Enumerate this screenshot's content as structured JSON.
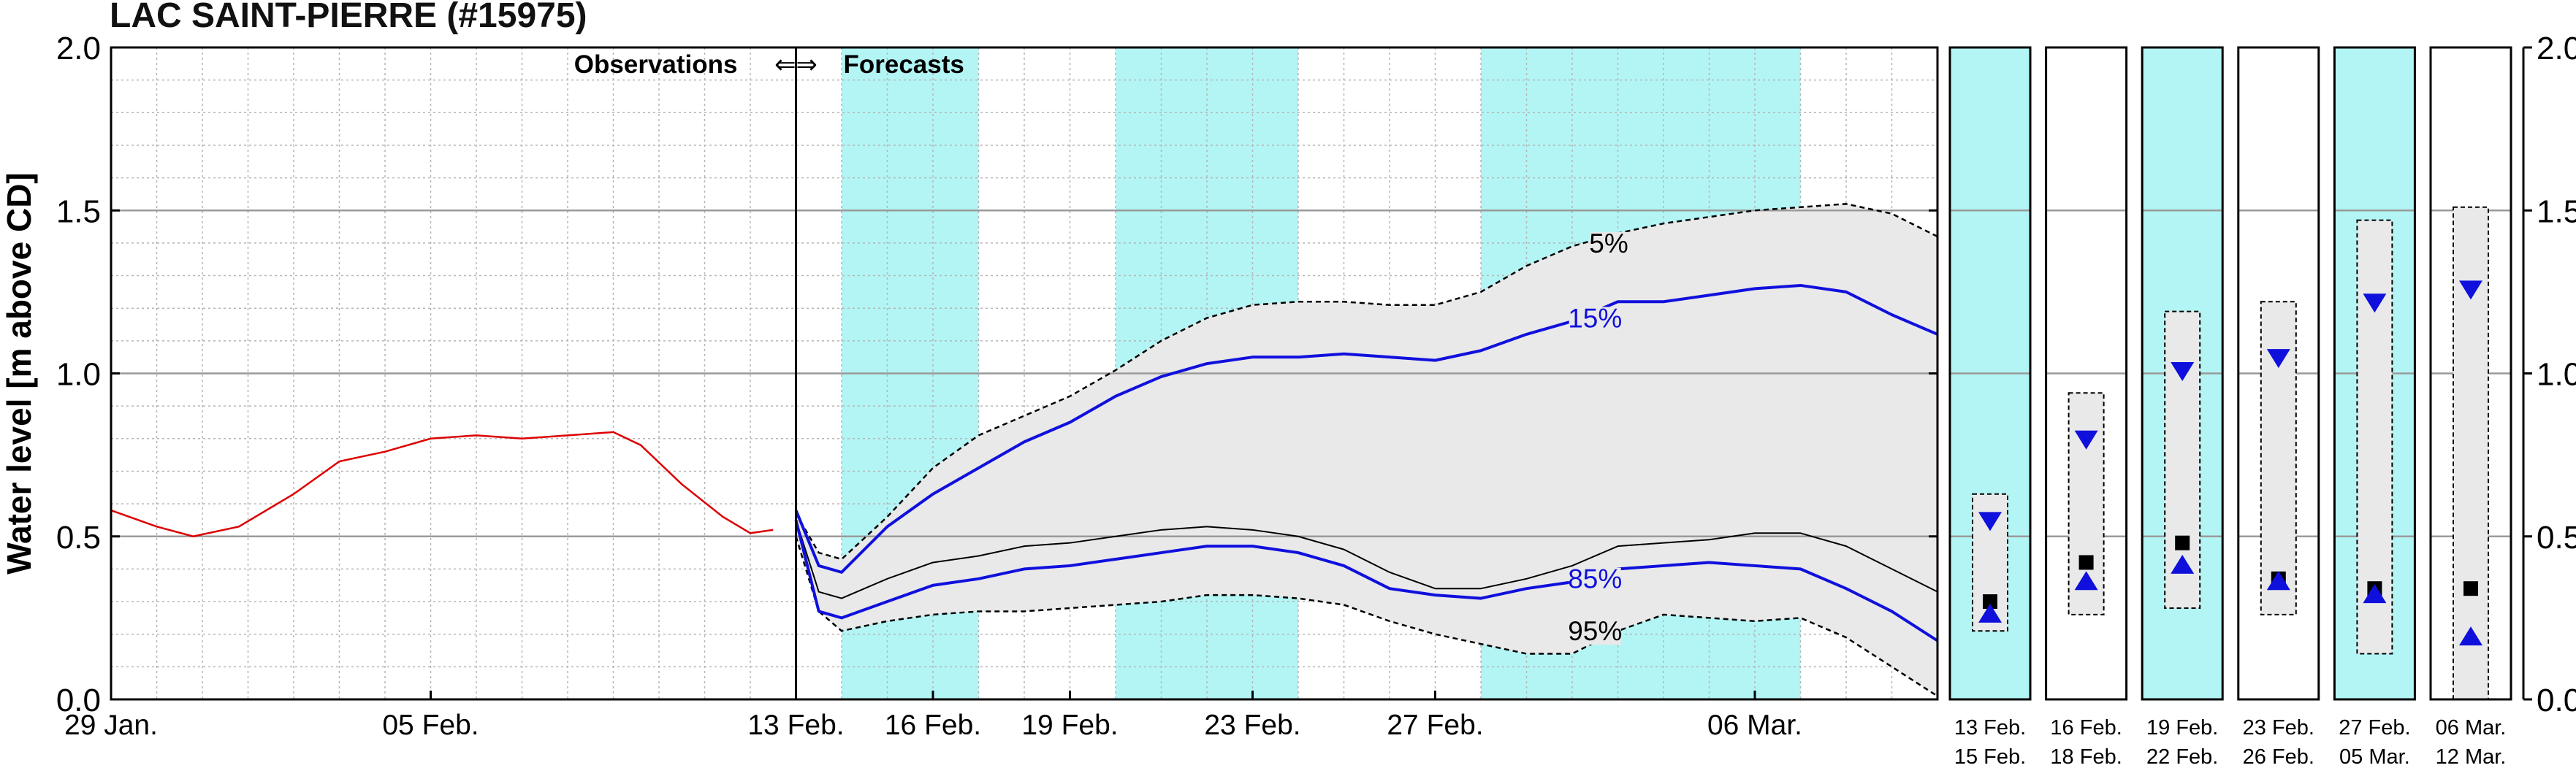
{
  "chart_data": {
    "type": "line",
    "title": "LAC SAINT-PIERRE (#15975)",
    "ylabel": "Water level [m above CD]",
    "xlabel": "",
    "ylim": [
      0.0,
      2.0
    ],
    "grid": true,
    "yticks": [
      "0.0",
      "0.5",
      "1.0",
      "1.5",
      "2.0"
    ],
    "x_start_day": -15,
    "x_end_day": 25,
    "xticks": [
      {
        "day": -15,
        "label": "29 Jan."
      },
      {
        "day": -8,
        "label": "05 Feb."
      },
      {
        "day": 0,
        "label": "13 Feb."
      },
      {
        "day": 3,
        "label": "16 Feb."
      },
      {
        "day": 6,
        "label": "19 Feb."
      },
      {
        "day": 10,
        "label": "23 Feb."
      },
      {
        "day": 14,
        "label": "27 Feb."
      },
      {
        "day": 21,
        "label": "06 Mar."
      }
    ],
    "divider": {
      "day": 0,
      "left_label": "Observations",
      "arrows": "⇐⇒",
      "right_label": "Forecasts"
    },
    "shaded_periods": [
      [
        1,
        4
      ],
      [
        7,
        11
      ],
      [
        15,
        22
      ]
    ],
    "observations": {
      "name": "",
      "color": "#dd0000",
      "points": [
        [
          -15,
          0.58
        ],
        [
          -14,
          0.53
        ],
        [
          -13.2,
          0.5
        ],
        [
          -12.2,
          0.53
        ],
        [
          -11,
          0.63
        ],
        [
          -10,
          0.73
        ],
        [
          -9,
          0.76
        ],
        [
          -8,
          0.8
        ],
        [
          -7,
          0.81
        ],
        [
          -6,
          0.8
        ],
        [
          -5,
          0.81
        ],
        [
          -4,
          0.82
        ],
        [
          -3.4,
          0.78
        ],
        [
          -2.5,
          0.66
        ],
        [
          -1.6,
          0.56
        ],
        [
          -1,
          0.51
        ],
        [
          -0.5,
          0.52
        ]
      ]
    },
    "envelope": {
      "upper_label": "5%",
      "lower_label": "95%",
      "fill": "#e9e9e9",
      "upper": [
        [
          0,
          0.57
        ],
        [
          0.5,
          0.45
        ],
        [
          1,
          0.43
        ],
        [
          2,
          0.56
        ],
        [
          3,
          0.71
        ],
        [
          4,
          0.81
        ],
        [
          5,
          0.87
        ],
        [
          6,
          0.93
        ],
        [
          7,
          1.01
        ],
        [
          8,
          1.1
        ],
        [
          9,
          1.17
        ],
        [
          10,
          1.21
        ],
        [
          11,
          1.22
        ],
        [
          12,
          1.22
        ],
        [
          13,
          1.21
        ],
        [
          14,
          1.21
        ],
        [
          15,
          1.25
        ],
        [
          16,
          1.33
        ],
        [
          17,
          1.39
        ],
        [
          18,
          1.43
        ],
        [
          19,
          1.46
        ],
        [
          20,
          1.48
        ],
        [
          21,
          1.5
        ],
        [
          22,
          1.51
        ],
        [
          23,
          1.52
        ],
        [
          24,
          1.49
        ],
        [
          25,
          1.42
        ]
      ],
      "lower": [
        [
          0,
          0.5
        ],
        [
          0.5,
          0.27
        ],
        [
          1,
          0.21
        ],
        [
          2,
          0.24
        ],
        [
          3,
          0.26
        ],
        [
          4,
          0.27
        ],
        [
          5,
          0.27
        ],
        [
          6,
          0.28
        ],
        [
          7,
          0.29
        ],
        [
          8,
          0.3
        ],
        [
          9,
          0.32
        ],
        [
          10,
          0.32
        ],
        [
          11,
          0.31
        ],
        [
          12,
          0.29
        ],
        [
          13,
          0.24
        ],
        [
          14,
          0.2
        ],
        [
          15,
          0.17
        ],
        [
          16,
          0.14
        ],
        [
          17,
          0.14
        ],
        [
          18,
          0.21
        ],
        [
          19,
          0.26
        ],
        [
          20,
          0.25
        ],
        [
          21,
          0.24
        ],
        [
          22,
          0.25
        ],
        [
          23,
          0.19
        ],
        [
          24,
          0.1
        ],
        [
          25,
          0.01
        ]
      ]
    },
    "series": [
      {
        "name": "15%",
        "color": "#1010dd",
        "width": 4,
        "values": [
          [
            0,
            0.58
          ],
          [
            0.5,
            0.41
          ],
          [
            1,
            0.39
          ],
          [
            2,
            0.53
          ],
          [
            3,
            0.63
          ],
          [
            4,
            0.71
          ],
          [
            5,
            0.79
          ],
          [
            6,
            0.85
          ],
          [
            7,
            0.93
          ],
          [
            8,
            0.99
          ],
          [
            9,
            1.03
          ],
          [
            10,
            1.05
          ],
          [
            11,
            1.05
          ],
          [
            12,
            1.06
          ],
          [
            13,
            1.05
          ],
          [
            14,
            1.04
          ],
          [
            15,
            1.07
          ],
          [
            16,
            1.12
          ],
          [
            17,
            1.16
          ],
          [
            18,
            1.22
          ],
          [
            19,
            1.22
          ],
          [
            20,
            1.24
          ],
          [
            21,
            1.26
          ],
          [
            22,
            1.27
          ],
          [
            23,
            1.25
          ],
          [
            24,
            1.18
          ],
          [
            25,
            1.12
          ]
        ]
      },
      {
        "name": "85%",
        "color": "#1010dd",
        "width": 4,
        "values": [
          [
            0,
            0.55
          ],
          [
            0.5,
            0.27
          ],
          [
            1,
            0.25
          ],
          [
            2,
            0.3
          ],
          [
            3,
            0.35
          ],
          [
            4,
            0.37
          ],
          [
            5,
            0.4
          ],
          [
            6,
            0.41
          ],
          [
            7,
            0.43
          ],
          [
            8,
            0.45
          ],
          [
            9,
            0.47
          ],
          [
            10,
            0.47
          ],
          [
            11,
            0.45
          ],
          [
            12,
            0.41
          ],
          [
            13,
            0.34
          ],
          [
            14,
            0.32
          ],
          [
            15,
            0.31
          ],
          [
            16,
            0.34
          ],
          [
            17,
            0.36
          ],
          [
            18,
            0.4
          ],
          [
            19,
            0.41
          ],
          [
            20,
            0.42
          ],
          [
            21,
            0.41
          ],
          [
            22,
            0.4
          ],
          [
            23,
            0.34
          ],
          [
            24,
            0.27
          ],
          [
            25,
            0.18
          ]
        ]
      },
      {
        "name": "",
        "color": "#000000",
        "width": 2,
        "values": [
          [
            0,
            0.55
          ],
          [
            0.5,
            0.33
          ],
          [
            1,
            0.31
          ],
          [
            2,
            0.37
          ],
          [
            3,
            0.42
          ],
          [
            4,
            0.44
          ],
          [
            5,
            0.47
          ],
          [
            6,
            0.48
          ],
          [
            7,
            0.5
          ],
          [
            8,
            0.52
          ],
          [
            9,
            0.53
          ],
          [
            10,
            0.52
          ],
          [
            11,
            0.5
          ],
          [
            12,
            0.46
          ],
          [
            13,
            0.39
          ],
          [
            14,
            0.34
          ],
          [
            15,
            0.34
          ],
          [
            16,
            0.37
          ],
          [
            17,
            0.41
          ],
          [
            18,
            0.47
          ],
          [
            19,
            0.48
          ],
          [
            20,
            0.49
          ],
          [
            21,
            0.51
          ],
          [
            22,
            0.51
          ],
          [
            23,
            0.47
          ],
          [
            24,
            0.4
          ],
          [
            25,
            0.33
          ]
        ]
      }
    ],
    "curve_labels": [
      {
        "text": "5%",
        "day": 17.8,
        "y": 1.38,
        "color": "#000000"
      },
      {
        "text": "15%",
        "day": 17.5,
        "y": 1.15,
        "color": "#1010dd"
      },
      {
        "text": "85%",
        "day": 17.5,
        "y": 0.35,
        "color": "#1010dd"
      },
      {
        "text": "95%",
        "day": 17.5,
        "y": 0.19,
        "color": "#000000"
      }
    ],
    "weekly_panels": [
      {
        "label_top": "13  Feb.",
        "label_bottom": "15  Feb.",
        "shaded": true,
        "box": [
          0.21,
          0.63
        ],
        "max": 0.55,
        "mean": 0.3,
        "min": 0.26
      },
      {
        "label_top": "16  Feb.",
        "label_bottom": "18  Feb.",
        "shaded": false,
        "box": [
          0.26,
          0.94
        ],
        "max": 0.8,
        "mean": 0.42,
        "min": 0.36
      },
      {
        "label_top": "19  Feb.",
        "label_bottom": "22  Feb.",
        "shaded": true,
        "box": [
          0.28,
          1.19
        ],
        "max": 1.01,
        "mean": 0.48,
        "min": 0.41
      },
      {
        "label_top": "23  Feb.",
        "label_bottom": "26  Feb.",
        "shaded": false,
        "box": [
          0.26,
          1.22
        ],
        "max": 1.05,
        "mean": 0.37,
        "min": 0.36
      },
      {
        "label_top": "27  Feb.",
        "label_bottom": "05  Mar.",
        "shaded": true,
        "box": [
          0.14,
          1.47
        ],
        "max": 1.22,
        "mean": 0.34,
        "min": 0.32
      },
      {
        "label_top": "06  Mar.",
        "label_bottom": "12  Mar.",
        "shaded": false,
        "box": [
          0.0,
          1.51
        ],
        "max": 1.26,
        "mean": 0.34,
        "min": 0.19
      }
    ],
    "colors": {
      "shade": "#b3f5f5",
      "envelope": "#e9e9e9",
      "observation": "#dd0000",
      "forecast": "#1010dd"
    }
  }
}
